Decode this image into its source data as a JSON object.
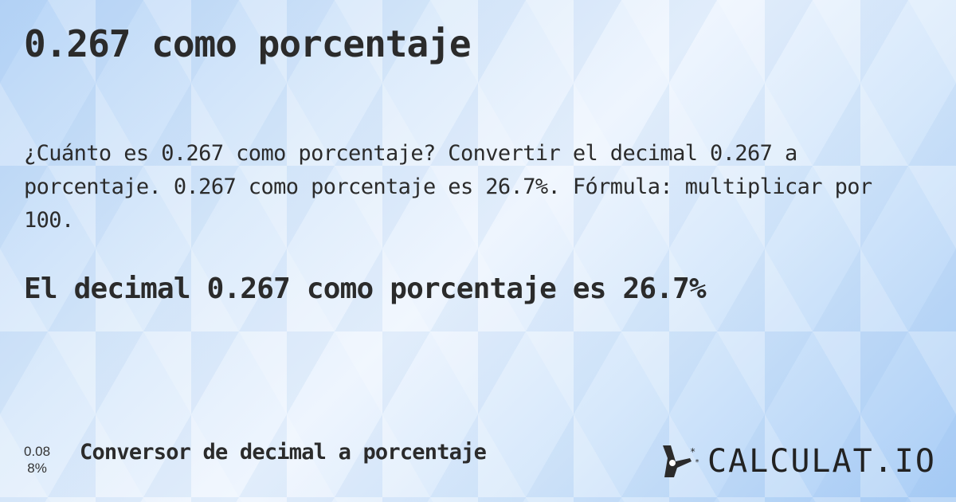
{
  "title": "0.267 como porcentaje",
  "description": "¿Cuánto es 0.267 como porcentaje? Convertir el decimal 0.267 a porcentaje. 0.267 como porcentaje es 26.7%. Fórmula: multiplicar por 100.",
  "result": "El decimal 0.267 como porcentaje es 26.7%",
  "footer": {
    "mini_top": "0.08",
    "mini_bottom": "8%",
    "link": "Conversor de decimal a porcentaje",
    "logo": "CALCULAT.IO",
    "logo_icon": "magic-wand-hand-icon"
  }
}
